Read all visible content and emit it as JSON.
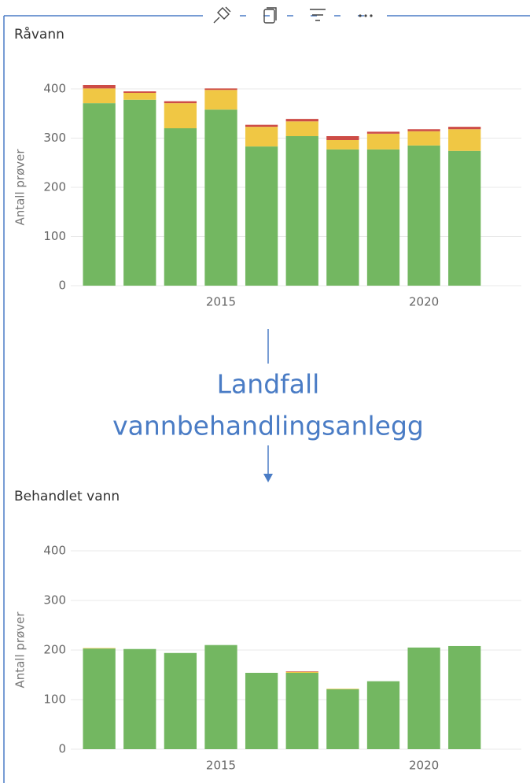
{
  "label_lines": [
    "Landfall",
    "vannbehandlingsanlegg"
  ],
  "chart_data": [
    {
      "type": "stacked_bar",
      "title": "Råvann",
      "y_label": "Antall prøver",
      "x": [
        2012,
        2013,
        2014,
        2015,
        2016,
        2017,
        2018,
        2019,
        2020,
        2021
      ],
      "series": [
        {
          "color": "#73b761",
          "values": [
            371,
            378,
            320,
            358,
            283,
            304,
            277,
            277,
            285,
            274
          ]
        },
        {
          "color": "#f0c744",
          "values": [
            30,
            14,
            51,
            40,
            40,
            30,
            19,
            32,
            29,
            44
          ]
        },
        {
          "color": "#cd4c46",
          "values": [
            7,
            3,
            4,
            3,
            4,
            5,
            8,
            4,
            4,
            5
          ]
        }
      ],
      "xlim": [
        2011.3,
        2022.4
      ],
      "xticks": [
        2015,
        2020
      ],
      "ylim": [
        0,
        400
      ],
      "yticks": [
        0,
        100,
        200,
        300,
        400
      ],
      "grid": true
    },
    {
      "type": "stacked_bar",
      "title": "Behandlet vann",
      "y_label": "Antall prøver",
      "x": [
        2012,
        2013,
        2014,
        2015,
        2016,
        2017,
        2018,
        2019,
        2020,
        2021
      ],
      "series": [
        {
          "color": "#73b761",
          "values": [
            203,
            202,
            194,
            210,
            154,
            154,
            121,
            137,
            205,
            208
          ]
        },
        {
          "color": "#f0c744",
          "values": [
            1,
            0,
            0,
            0,
            0,
            2,
            1,
            0,
            0,
            0
          ]
        },
        {
          "color": "#cd4c46",
          "values": [
            0,
            0,
            0,
            0,
            0,
            1,
            0,
            0,
            0,
            0
          ]
        }
      ],
      "xlim": [
        2011.3,
        2022.4
      ],
      "xticks": [
        2015,
        2020
      ],
      "ylim": [
        0,
        400
      ],
      "yticks": [
        0,
        100,
        200,
        300,
        400
      ],
      "grid": true
    }
  ]
}
